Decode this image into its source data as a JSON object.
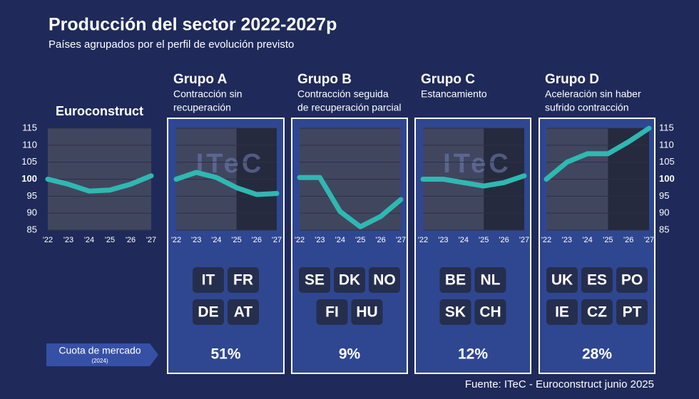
{
  "chart_data": {
    "type": "line",
    "title": "Producción del sector 2022-2027p",
    "subtitle": "Países agrupados por el perfil de evolución previsto",
    "categories": [
      "'22",
      "'23",
      "'24",
      "'25",
      "'26",
      "'27"
    ],
    "ylim": [
      85,
      115
    ],
    "yticks": [
      85,
      90,
      95,
      100,
      105,
      110,
      115
    ],
    "watermark": "ITeC",
    "share_title": "Cuota de mercado",
    "share_year": "(2024)",
    "source": "Fuente: ITeC - Euroconstruct junio 2025",
    "series": [
      {
        "name": "Euroconstruct",
        "color": "#2fb8b2",
        "values": [
          100,
          98.5,
          96.5,
          96.8,
          98.5,
          101
        ]
      },
      {
        "name": "Grupo A",
        "color": "#2fb8b2",
        "description": [
          "Contracción sin",
          "recuperación"
        ],
        "countries": [
          [
            "IT",
            "FR"
          ],
          [
            "DE",
            "AT"
          ]
        ],
        "share": "51%",
        "values": [
          100,
          102,
          100.5,
          97.5,
          95.5,
          95.8
        ]
      },
      {
        "name": "Grupo B",
        "color": "#2fb8b2",
        "description": [
          "Contracción seguida",
          "de recuperación parcial"
        ],
        "countries": [
          [
            "SE",
            "DK",
            "NO"
          ],
          [
            "FI",
            "HU"
          ]
        ],
        "share": "9%",
        "values": [
          100.5,
          100.5,
          90.5,
          86,
          89,
          94
        ]
      },
      {
        "name": "Grupo C",
        "color": "#2fb8b2",
        "description": [
          "Estancamiento"
        ],
        "countries": [
          [
            "BE",
            "NL"
          ],
          [
            "SK",
            "CH"
          ]
        ],
        "share": "12%",
        "values": [
          100,
          100,
          99,
          98,
          99,
          101
        ]
      },
      {
        "name": "Grupo D",
        "color": "#2fb8b2",
        "description": [
          "Aceleración sin haber",
          "sufrido contracción"
        ],
        "countries": [
          [
            "UK",
            "ES",
            "PO"
          ],
          [
            "IE",
            "CZ",
            "PT"
          ]
        ],
        "share": "28%",
        "values": [
          100,
          105,
          107.5,
          107.5,
          111,
          115
        ]
      }
    ]
  }
}
